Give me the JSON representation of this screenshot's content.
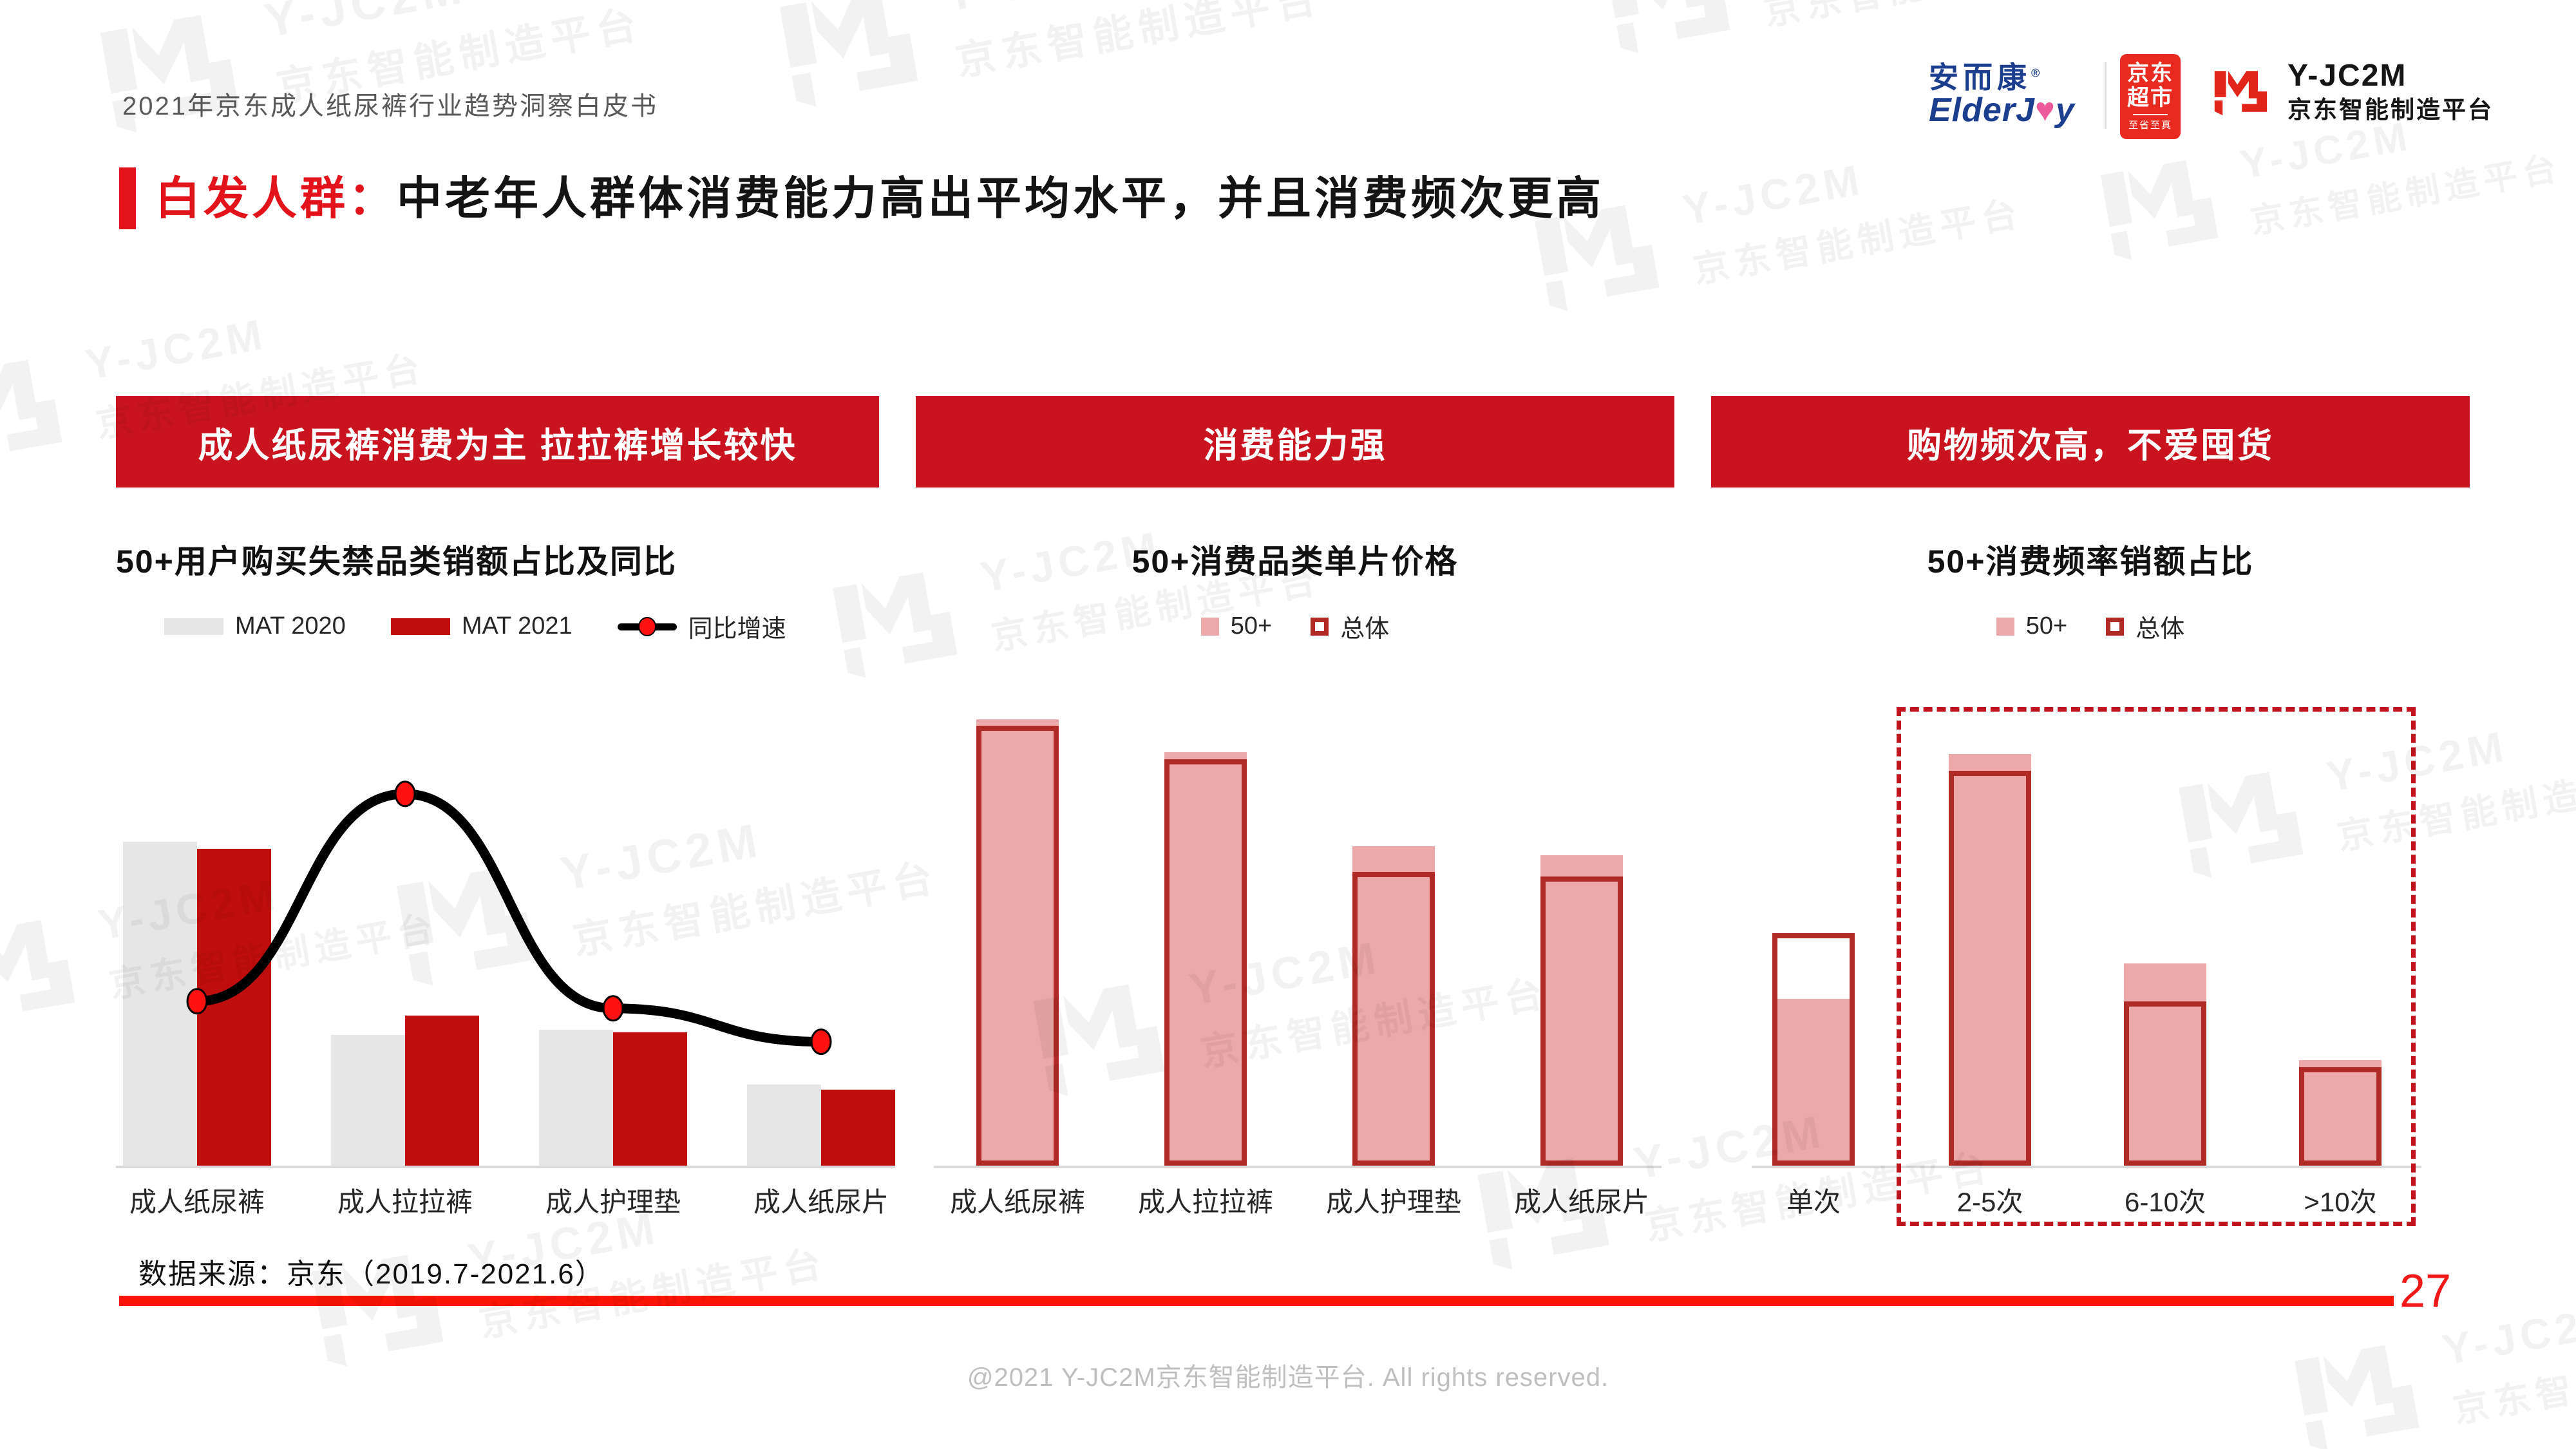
{
  "header": {
    "doc_title": "2021年京东成人纸尿裤行业趋势洞察白皮书"
  },
  "logos": {
    "elderjoy": {
      "cn": "安而康",
      "reg": "®",
      "en_pre": "ElderJ",
      "heart": "♥",
      "en_post": "y"
    },
    "jd_badge": {
      "line1": "京东",
      "line2": "超市",
      "tagline": "至省至真"
    },
    "yjc2m": {
      "name": "Y-JC2M",
      "subtitle": "京东智能制造平台"
    }
  },
  "headline": {
    "tag": "白发人群：",
    "text": "中老年人群体消费能力高出平均水平，并且消费频次更高"
  },
  "panels": [
    {
      "banner": "成人纸尿裤消费为主 拉拉裤增长较快",
      "subtitle": "50+用户购买失禁品类销额占比及同比"
    },
    {
      "banner": "消费能力强",
      "subtitle": "50+消费品类单片价格"
    },
    {
      "banner": "购物频次高，不爱囤货",
      "subtitle": "50+消费频率销额占比"
    }
  ],
  "watermark": {
    "brand": "Y-JC2M",
    "subtitle": "京东智能制造平台"
  },
  "chart_data": [
    {
      "type": "bar",
      "subtype": "grouped-bars-with-line",
      "title": "50+用户购买失禁品类销额占比及同比",
      "categories": [
        "成人纸尿裤",
        "成人拉拉裤",
        "成人护理垫",
        "成人纸尿片"
      ],
      "series": [
        {
          "name": "MAT 2020",
          "type": "bar",
          "color": "#E6E6E6",
          "values_pct": [
            68,
            27.5,
            28.5,
            17
          ]
        },
        {
          "name": "MAT 2021",
          "type": "bar",
          "color": "#C00D0D",
          "values_pct": [
            66.5,
            31.5,
            28,
            16
          ]
        },
        {
          "name": "同比增速",
          "type": "line",
          "color": "#000000",
          "marker_color": "#FF1111",
          "values_pct": [
            34.5,
            78,
            33,
            26
          ]
        }
      ],
      "value_labels": false,
      "axis_labels": false,
      "legend_position": "top",
      "note": "图中无数值标注，values_pct 为柱/折线高度占绘图区高度的估算百分比"
    },
    {
      "type": "bar",
      "subtype": "overlay-bars",
      "title": "50+消费品类单片价格",
      "categories": [
        "成人纸尿裤",
        "成人拉拉裤",
        "成人护理垫",
        "成人纸尿片"
      ],
      "series": [
        {
          "name": "50+",
          "style": "filled",
          "color": "#EDA9A9",
          "values_pct": [
            95,
            88,
            68,
            66
          ]
        },
        {
          "name": "总体",
          "style": "outlined",
          "color": "#B02A26",
          "values_pct": [
            93.5,
            86.5,
            62.5,
            61.5
          ]
        }
      ],
      "value_labels": false,
      "legend_position": "top",
      "note": "图中无数值标注，values_pct 为柱高占绘图区高度的估算百分比"
    },
    {
      "type": "bar",
      "subtype": "overlay-bars",
      "title": "50+消费频率销额占比",
      "categories": [
        "单次",
        "2-5次",
        "6-10次",
        ">10次"
      ],
      "series": [
        {
          "name": "50+",
          "style": "filled",
          "color": "#EDA9A9",
          "values_pct": [
            35.5,
            87.5,
            43,
            22.5
          ]
        },
        {
          "name": "总体",
          "style": "outlined",
          "color": "#B02A26",
          "values_pct": [
            49.5,
            84,
            35,
            21
          ]
        }
      ],
      "highlight": {
        "style": "red-dashed-box",
        "categories": [
          "2-5次",
          "6-10次",
          ">10次"
        ]
      },
      "value_labels": false,
      "legend_position": "top",
      "note": "图中无数值标注，values_pct 为柱高占绘图区高度的估算百分比"
    }
  ],
  "footer": {
    "source_note": "数据来源：京东（2019.7-2021.6）",
    "page_number": "27",
    "copyright": "@2021 Y-JC2M京东智能制造平台. All rights reserved."
  }
}
